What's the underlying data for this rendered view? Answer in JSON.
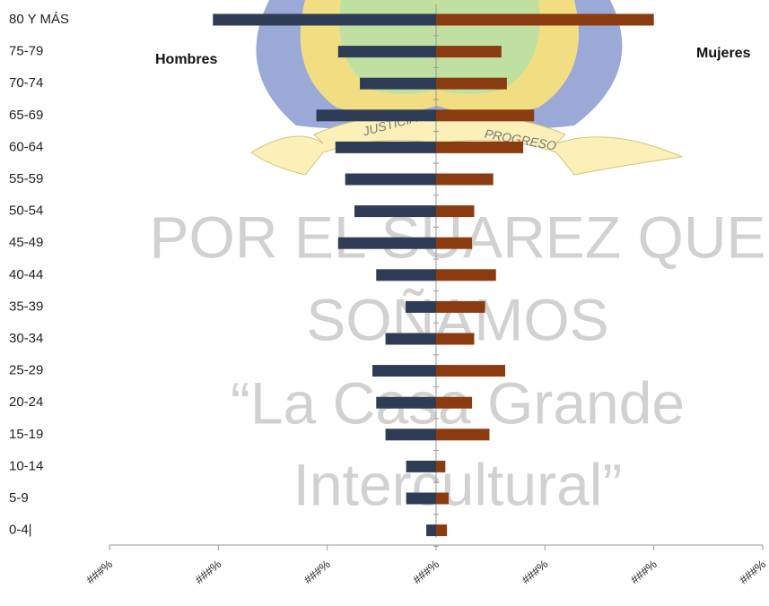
{
  "chart_data": {
    "type": "bar",
    "orientation": "horizontal",
    "categories": [
      "80 Y MÁS",
      "75-79",
      "70-74",
      "65-69",
      "60-64",
      "55-59",
      "50-54",
      "45-49",
      "40-44",
      "35-39",
      "30-34",
      "25-29",
      "20-24",
      "15-19",
      "10-14",
      "5-9",
      "0-4|"
    ],
    "series": [
      {
        "name": "Hombres",
        "color": "#2f3c55",
        "values": [
          -4.1,
          -1.8,
          -1.4,
          -2.2,
          -1.85,
          -1.67,
          -1.5,
          -1.8,
          -1.1,
          -0.56,
          -0.93,
          -1.17,
          -1.1,
          -0.93,
          -0.55,
          -0.55,
          -0.18
        ]
      },
      {
        "name": "Mujeres",
        "color": "#8a3b10",
        "values": [
          4.0,
          1.2,
          1.3,
          1.8,
          1.6,
          1.05,
          0.7,
          0.66,
          1.1,
          0.9,
          0.7,
          1.27,
          0.66,
          0.98,
          0.17,
          0.23,
          0.2
        ]
      }
    ],
    "xlim": [
      -6,
      6
    ],
    "xticks": [
      {
        "value": -6,
        "label": "###%"
      },
      {
        "value": -4,
        "label": "###%"
      },
      {
        "value": -2,
        "label": "###%"
      },
      {
        "value": 0,
        "label": "###%"
      },
      {
        "value": 2,
        "label": "###%"
      },
      {
        "value": 4,
        "label": "###%"
      },
      {
        "value": 6,
        "label": "###%"
      }
    ],
    "annotations": [
      "POR EL SUAREZ QUE",
      "SOÑAMOS",
      "“La Casa Grande",
      "Intercultural”"
    ],
    "emblem_texts": [
      "JUSTICIA",
      "PROGRESO"
    ]
  }
}
